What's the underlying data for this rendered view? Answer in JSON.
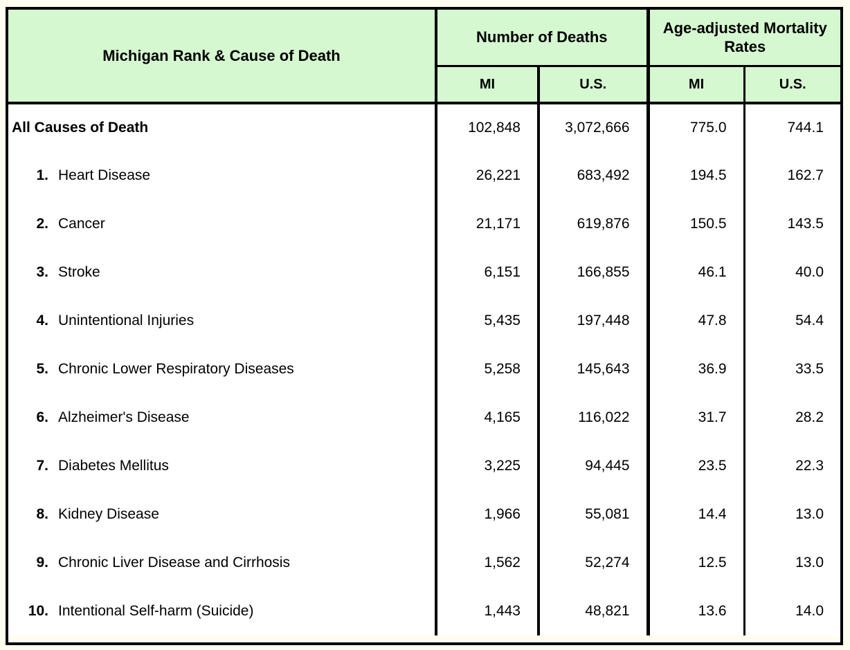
{
  "colors": {
    "header_bg": "#d5f8d0",
    "page_bg": "#fffdf0",
    "border": "#000000",
    "cell_bg": "#ffffff"
  },
  "table": {
    "header": {
      "col1": "Michigan Rank & Cause of Death",
      "group1": "Number of Deaths",
      "group2": "Age-adjusted Mortality Rates",
      "sub": [
        "MI",
        "U.S.",
        "MI",
        "U.S."
      ]
    },
    "rows": [
      {
        "rank": "",
        "cause": "All Causes of Death",
        "bold": true,
        "mi_deaths": "102,848",
        "us_deaths": "3,072,666",
        "mi_rate": "775.0",
        "us_rate": "744.1"
      },
      {
        "rank": "1.",
        "cause": "Heart Disease",
        "bold": false,
        "mi_deaths": "26,221",
        "us_deaths": "683,492",
        "mi_rate": "194.5",
        "us_rate": "162.7"
      },
      {
        "rank": "2.",
        "cause": "Cancer",
        "bold": false,
        "mi_deaths": "21,171",
        "us_deaths": "619,876",
        "mi_rate": "150.5",
        "us_rate": "143.5"
      },
      {
        "rank": "3.",
        "cause": "Stroke",
        "bold": false,
        "mi_deaths": "6,151",
        "us_deaths": "166,855",
        "mi_rate": "46.1",
        "us_rate": "40.0"
      },
      {
        "rank": "4.",
        "cause": "Unintentional Injuries",
        "bold": false,
        "mi_deaths": "5,435",
        "us_deaths": "197,448",
        "mi_rate": "47.8",
        "us_rate": "54.4"
      },
      {
        "rank": "5.",
        "cause": "Chronic Lower Respiratory Diseases",
        "bold": false,
        "mi_deaths": "5,258",
        "us_deaths": "145,643",
        "mi_rate": "36.9",
        "us_rate": "33.5"
      },
      {
        "rank": "6.",
        "cause": "Alzheimer's Disease",
        "bold": false,
        "mi_deaths": "4,165",
        "us_deaths": "116,022",
        "mi_rate": "31.7",
        "us_rate": "28.2"
      },
      {
        "rank": "7.",
        "cause": "Diabetes Mellitus",
        "bold": false,
        "mi_deaths": "3,225",
        "us_deaths": "94,445",
        "mi_rate": "23.5",
        "us_rate": "22.3"
      },
      {
        "rank": "8.",
        "cause": "Kidney Disease",
        "bold": false,
        "mi_deaths": "1,966",
        "us_deaths": "55,081",
        "mi_rate": "14.4",
        "us_rate": "13.0"
      },
      {
        "rank": "9.",
        "cause": "Chronic Liver Disease and Cirrhosis",
        "bold": false,
        "mi_deaths": "1,562",
        "us_deaths": "52,274",
        "mi_rate": "12.5",
        "us_rate": "13.0"
      },
      {
        "rank": "10.",
        "cause": "Intentional Self-harm (Suicide)",
        "bold": false,
        "mi_deaths": "1,443",
        "us_deaths": "48,821",
        "mi_rate": "13.6",
        "us_rate": "14.0"
      }
    ]
  }
}
